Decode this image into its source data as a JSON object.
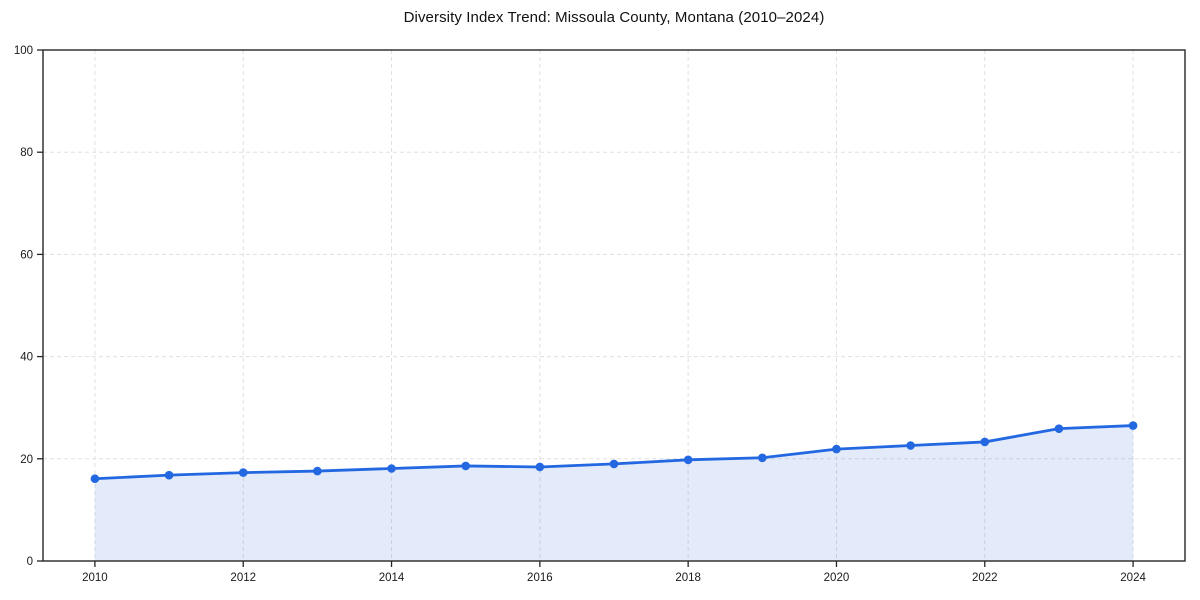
{
  "chart_data": {
    "type": "area",
    "title": "Diversity Index Trend: Missoula County, Montana (2010–2024)",
    "x": [
      2010,
      2011,
      2012,
      2013,
      2014,
      2015,
      2016,
      2017,
      2018,
      2019,
      2020,
      2021,
      2022,
      2023,
      2024
    ],
    "values": [
      16.1,
      16.8,
      17.3,
      17.6,
      18.1,
      18.6,
      18.4,
      19.0,
      19.8,
      20.2,
      21.9,
      22.6,
      23.3,
      25.9,
      26.5
    ],
    "series_name": "Diversity Index",
    "xlabel": "",
    "ylabel": "",
    "xlim": [
      2009.3,
      2024.7
    ],
    "ylim": [
      0,
      100
    ],
    "xticks": [
      2010,
      2012,
      2014,
      2016,
      2018,
      2020,
      2022,
      2024
    ],
    "yticks": [
      0,
      20,
      40,
      60,
      80,
      100
    ],
    "grid": "dashed",
    "legend": "none",
    "colors": {
      "line": "#2368e1",
      "marker": "#2368e1",
      "fill": "rgba(35, 104, 225, 0.13)",
      "grid": "#e0e0e0",
      "spine": "#262626",
      "tick_label": "#1a1a1a",
      "background": "#ffffff"
    }
  }
}
